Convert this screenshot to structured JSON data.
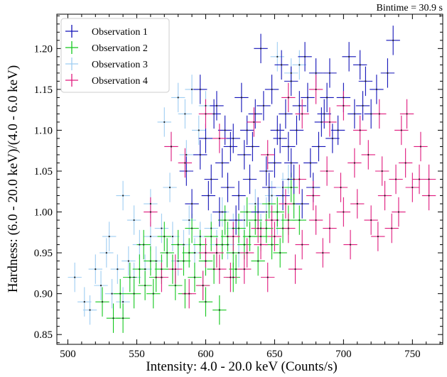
{
  "chart_data": {
    "type": "scatter",
    "annotation": "Bintime = 30.9 s",
    "xlabel": "Intensity: 4.0 - 20.0 keV (Counts/s)",
    "ylabel": "Hardness: (6.0 - 20.0 keV)/(4.0 - 6.0 keV)",
    "xlim": [
      492,
      772
    ],
    "ylim": [
      0.838,
      1.242
    ],
    "xticks": [
      500,
      550,
      600,
      650,
      700,
      750
    ],
    "xtick_labels": [
      "500",
      "550",
      "600",
      "650",
      "700",
      "750"
    ],
    "yticks": [
      0.85,
      0.9,
      0.95,
      1.0,
      1.05,
      1.1,
      1.15,
      1.2
    ],
    "ytick_labels": [
      "0.85",
      "0.90",
      "0.95",
      "1.00",
      "1.05",
      "1.10",
      "1.15",
      "1.20"
    ],
    "grid": false,
    "legend_position": "top-left",
    "error_bars": {
      "x": 5,
      "y": 0.018
    },
    "series": [
      {
        "name": "Observation 1",
        "color": "#1212b8",
        "points": [
          [
            620,
            1.09
          ],
          [
            628,
            1.07
          ],
          [
            636,
            1.12
          ],
          [
            644,
            1.05
          ],
          [
            652,
            1.1
          ],
          [
            660,
            1.08
          ],
          [
            668,
            1.13
          ],
          [
            676,
            1.06
          ],
          [
            684,
            1.11
          ],
          [
            692,
            1.09
          ],
          [
            700,
            1.14
          ],
          [
            708,
            1.12
          ],
          [
            716,
            1.16
          ],
          [
            724,
            1.15
          ],
          [
            732,
            1.17
          ],
          [
            736,
            1.21
          ],
          [
            640,
            1.2
          ],
          [
            655,
            1.18
          ],
          [
            662,
            1.16
          ],
          [
            672,
            1.19
          ],
          [
            680,
            1.17
          ],
          [
            690,
            1.17
          ],
          [
            704,
            1.19
          ],
          [
            712,
            1.18
          ],
          [
            600,
            1.09
          ],
          [
            606,
            1.12
          ],
          [
            612,
            1.06
          ],
          [
            616,
            1.03
          ],
          [
            624,
            1.02
          ],
          [
            632,
            1.04
          ],
          [
            638,
            1.0
          ],
          [
            646,
            1.03
          ],
          [
            650,
            1.06
          ],
          [
            656,
            1.02
          ],
          [
            664,
            1.04
          ],
          [
            670,
            1.01
          ],
          [
            678,
            1.03
          ],
          [
            596,
            1.07
          ],
          [
            604,
            1.04
          ],
          [
            610,
            1.0
          ],
          [
            618,
            1.08
          ],
          [
            630,
            1.1
          ],
          [
            642,
            1.13
          ],
          [
            648,
            1.15
          ],
          [
            658,
            1.12
          ],
          [
            666,
            1.1
          ],
          [
            674,
            1.14
          ],
          [
            686,
            1.12
          ],
          [
            596,
            1.15
          ],
          [
            608,
            1.13
          ],
          [
            614,
            1.1
          ],
          [
            626,
            1.14
          ],
          [
            634,
            1.08
          ],
          [
            654,
            1.09
          ],
          [
            662,
            1.06
          ],
          [
            682,
            1.08
          ],
          [
            688,
            1.14
          ],
          [
            696,
            1.1
          ],
          [
            714,
            1.13
          ],
          [
            720,
            1.12
          ],
          [
            586,
            1.05
          ],
          [
            590,
            1.01
          ],
          [
            602,
            1.02
          ],
          [
            622,
            0.99
          ]
        ]
      },
      {
        "name": "Observation 2",
        "color": "#14c81e",
        "points": [
          [
            525,
            0.89
          ],
          [
            533,
            0.87
          ],
          [
            538,
            0.9
          ],
          [
            540,
            0.87
          ],
          [
            545,
            0.92
          ],
          [
            548,
            0.9
          ],
          [
            552,
            0.93
          ],
          [
            556,
            0.91
          ],
          [
            560,
            0.94
          ],
          [
            564,
            0.92
          ],
          [
            568,
            0.93
          ],
          [
            572,
            0.95
          ],
          [
            576,
            0.93
          ],
          [
            580,
            0.96
          ],
          [
            584,
            0.94
          ],
          [
            588,
            0.95
          ],
          [
            592,
            0.92
          ],
          [
            596,
            0.96
          ],
          [
            600,
            0.94
          ],
          [
            604,
            0.97
          ],
          [
            608,
            0.95
          ],
          [
            612,
            0.96
          ],
          [
            616,
            0.97
          ],
          [
            620,
            0.95
          ],
          [
            624,
            0.98
          ],
          [
            628,
            0.96
          ],
          [
            632,
            0.97
          ],
          [
            636,
            0.99
          ],
          [
            640,
            0.97
          ],
          [
            644,
            0.98
          ],
          [
            648,
            0.96
          ],
          [
            652,
            1.0
          ],
          [
            656,
            0.98
          ],
          [
            660,
            0.99
          ],
          [
            664,
            1.01
          ],
          [
            668,
            0.99
          ],
          [
            555,
            0.96
          ],
          [
            562,
            0.9
          ],
          [
            570,
            0.97
          ],
          [
            578,
            0.91
          ],
          [
            590,
            0.98
          ],
          [
            598,
            0.91
          ],
          [
            606,
            0.93
          ],
          [
            614,
            0.99
          ],
          [
            622,
            0.93
          ],
          [
            630,
            1.0
          ],
          [
            638,
            0.94
          ],
          [
            646,
            1.01
          ],
          [
            654,
            0.95
          ],
          [
            662,
            1.03
          ],
          [
            600,
            0.89
          ],
          [
            585,
            0.9
          ],
          [
            610,
            0.88
          ],
          [
            620,
            0.92
          ]
        ]
      },
      {
        "name": "Observation 3",
        "color": "#9ecdf2",
        "points": [
          [
            505,
            0.92
          ],
          [
            512,
            0.89
          ],
          [
            516,
            0.88
          ],
          [
            520,
            0.93
          ],
          [
            524,
            0.91
          ],
          [
            528,
            0.95
          ],
          [
            532,
            0.9
          ],
          [
            536,
            0.93
          ],
          [
            540,
            0.89
          ],
          [
            544,
            0.94
          ],
          [
            548,
            0.92
          ],
          [
            552,
            0.96
          ],
          [
            556,
            0.93
          ],
          [
            560,
            0.97
          ],
          [
            564,
            0.94
          ],
          [
            568,
            0.98
          ],
          [
            572,
            0.95
          ],
          [
            576,
            0.97
          ],
          [
            580,
            0.94
          ],
          [
            584,
            0.96
          ],
          [
            588,
            0.99
          ],
          [
            592,
            0.95
          ],
          [
            596,
            0.97
          ],
          [
            600,
            0.94
          ],
          [
            604,
            0.98
          ],
          [
            608,
            0.96
          ],
          [
            612,
            1.0
          ],
          [
            616,
            0.96
          ],
          [
            620,
            0.98
          ],
          [
            624,
            0.95
          ],
          [
            628,
            0.99
          ],
          [
            632,
            0.97
          ],
          [
            636,
            1.01
          ],
          [
            640,
            0.98
          ],
          [
            644,
            1.0
          ],
          [
            648,
            1.02
          ],
          [
            652,
            0.99
          ],
          [
            656,
            1.03
          ],
          [
            660,
            1.04
          ],
          [
            664,
            1.01
          ],
          [
            580,
            1.14
          ],
          [
            585,
            1.12
          ],
          [
            590,
            1.15
          ],
          [
            595,
            1.1
          ],
          [
            600,
            1.13
          ],
          [
            575,
            1.08
          ],
          [
            570,
            1.11
          ],
          [
            586,
            1.07
          ],
          [
            652,
            1.19
          ],
          [
            662,
            1.17
          ],
          [
            668,
            1.18
          ],
          [
            540,
            1.02
          ],
          [
            548,
            0.99
          ],
          [
            530,
            0.97
          ],
          [
            560,
            1.01
          ],
          [
            574,
            1.03
          ]
        ]
      },
      {
        "name": "Observation 4",
        "color": "#e01a7e",
        "points": [
          [
            560,
            1.0
          ],
          [
            575,
            1.08
          ],
          [
            585,
            1.06
          ],
          [
            600,
            0.95
          ],
          [
            610,
            0.93
          ],
          [
            620,
            0.97
          ],
          [
            630,
            0.95
          ],
          [
            640,
            0.96
          ],
          [
            650,
            0.97
          ],
          [
            660,
            0.98
          ],
          [
            670,
            0.96
          ],
          [
            680,
            0.99
          ],
          [
            690,
            0.98
          ],
          [
            700,
            1.0
          ],
          [
            710,
            1.01
          ],
          [
            720,
            0.99
          ],
          [
            730,
            1.02
          ],
          [
            740,
            1.0
          ],
          [
            750,
            1.03
          ],
          [
            762,
            1.04
          ],
          [
            762,
            1.02
          ],
          [
            756,
            1.08
          ],
          [
            745,
            1.06
          ],
          [
            738,
            1.04
          ],
          [
            728,
            1.05
          ],
          [
            718,
            1.07
          ],
          [
            708,
            1.06
          ],
          [
            698,
            1.03
          ],
          [
            688,
            1.05
          ],
          [
            678,
            1.02
          ],
          [
            668,
            1.04
          ],
          [
            658,
            1.01
          ],
          [
            648,
            0.99
          ],
          [
            638,
            0.98
          ],
          [
            628,
            0.93
          ],
          [
            618,
            0.92
          ],
          [
            608,
            0.95
          ],
          [
            598,
            0.91
          ],
          [
            588,
            0.9
          ],
          [
            578,
            0.93
          ],
          [
            568,
            0.92
          ],
          [
            660,
            1.14
          ],
          [
            670,
            1.12
          ],
          [
            680,
            1.15
          ],
          [
            690,
            1.11
          ],
          [
            700,
            1.13
          ],
          [
            712,
            1.1
          ],
          [
            726,
            1.12
          ],
          [
            742,
            1.1
          ],
          [
            746,
            1.12
          ],
          [
            755,
            1.04
          ],
          [
            735,
            0.98
          ],
          [
            725,
            0.97
          ],
          [
            705,
            0.96
          ],
          [
            685,
            0.95
          ],
          [
            665,
            0.93
          ],
          [
            645,
            0.92
          ],
          [
            600,
            1.12
          ],
          [
            610,
            1.09
          ],
          [
            635,
            1.11
          ],
          [
            645,
            1.07
          ]
        ]
      }
    ]
  }
}
